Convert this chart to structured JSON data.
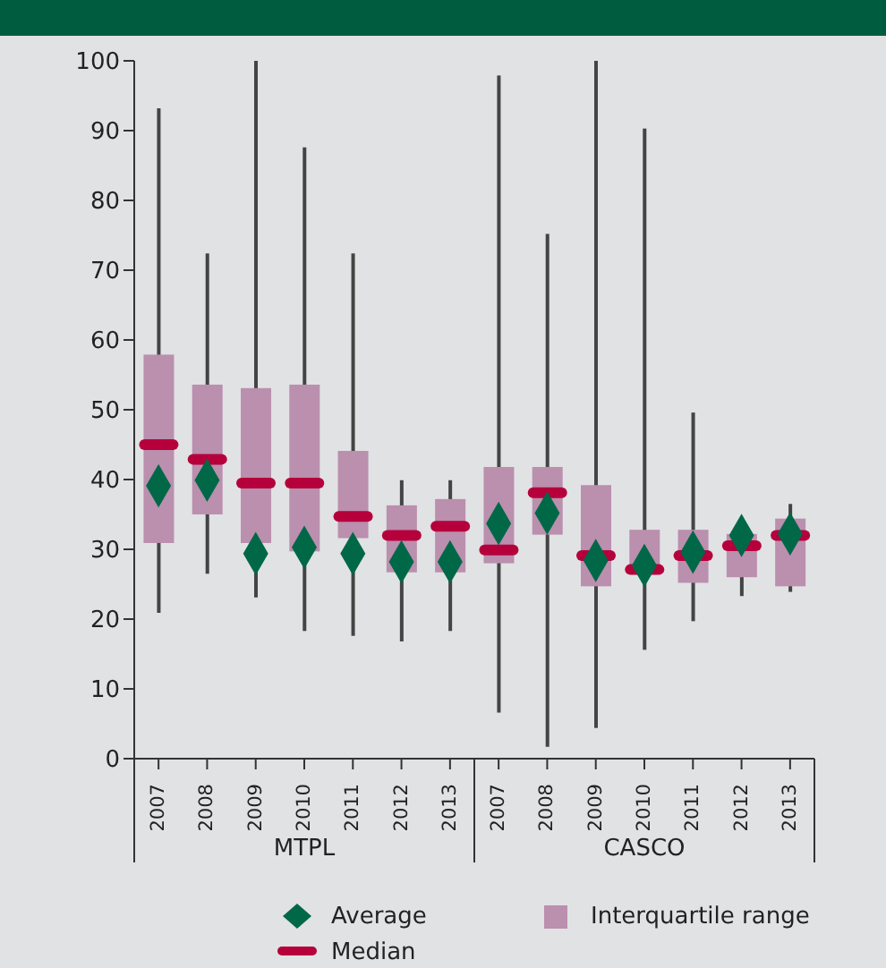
{
  "chart_data": {
    "type": "box",
    "categories": [
      "2007",
      "2008",
      "2009",
      "2010",
      "2011",
      "2012",
      "2013",
      "2007",
      "2008",
      "2009",
      "2010",
      "2011",
      "2012",
      "2013"
    ],
    "annotations": [
      "MTPL",
      "CASCO",
      "Median"
    ],
    "ylim": [
      0,
      100
    ],
    "yticks": [
      0,
      10,
      20,
      30,
      40,
      50,
      60,
      70,
      80,
      90,
      100
    ],
    "grid": false,
    "legend": "bottom",
    "series": [
      {
        "name": "Average",
        "type": "scatter",
        "color": "#006847",
        "marker": "diamond",
        "values": [
          39.1,
          39.9,
          29.4,
          30.3,
          29.4,
          28.2,
          28.2,
          33.7,
          35.2,
          28.4,
          27.7,
          29.6,
          32.0,
          32.2
        ]
      },
      {
        "name": "Interquartile range",
        "type": "box",
        "color": "#bb8fae",
        "boxes": [
          {
            "low": 20.9,
            "q1": 30.9,
            "median": 45.0,
            "q3": 57.9,
            "high": 93.2
          },
          {
            "low": 26.5,
            "q1": 35.0,
            "median": 42.9,
            "q3": 53.6,
            "high": 72.4
          },
          {
            "low": 23.1,
            "q1": 30.9,
            "median": 39.5,
            "q3": 53.1,
            "high": 100
          },
          {
            "low": 18.3,
            "q1": 29.7,
            "median": 39.5,
            "q3": 53.6,
            "high": 87.6
          },
          {
            "low": 17.6,
            "q1": 31.6,
            "median": 34.7,
            "q3": 44.1,
            "high": 72.4
          },
          {
            "low": 16.8,
            "q1": 26.7,
            "median": 32.0,
            "q3": 36.3,
            "high": 39.9
          },
          {
            "low": 18.3,
            "q1": 26.7,
            "median": 33.3,
            "q3": 37.2,
            "high": 39.9
          },
          {
            "low": 6.6,
            "q1": 28.0,
            "median": 29.9,
            "q3": 41.8,
            "high": 97.9
          },
          {
            "low": 1.7,
            "q1": 32.1,
            "median": 38.1,
            "q3": 41.8,
            "high": 75.2
          },
          {
            "low": 4.4,
            "q1": 24.7,
            "median": 29.1,
            "q3": 39.2,
            "high": 100
          },
          {
            "low": 15.6,
            "q1": 26.7,
            "median": 27.1,
            "q3": 32.8,
            "high": 90.3
          },
          {
            "low": 19.7,
            "q1": 25.2,
            "median": 29.1,
            "q3": 32.8,
            "high": 49.6
          },
          {
            "low": 23.3,
            "q1": 26.0,
            "median": 30.5,
            "q3": 32.2,
            "high": 34.4
          },
          {
            "low": 23.9,
            "q1": 24.7,
            "median": 32.0,
            "q3": 34.4,
            "high": 36.5
          }
        ]
      }
    ]
  }
}
